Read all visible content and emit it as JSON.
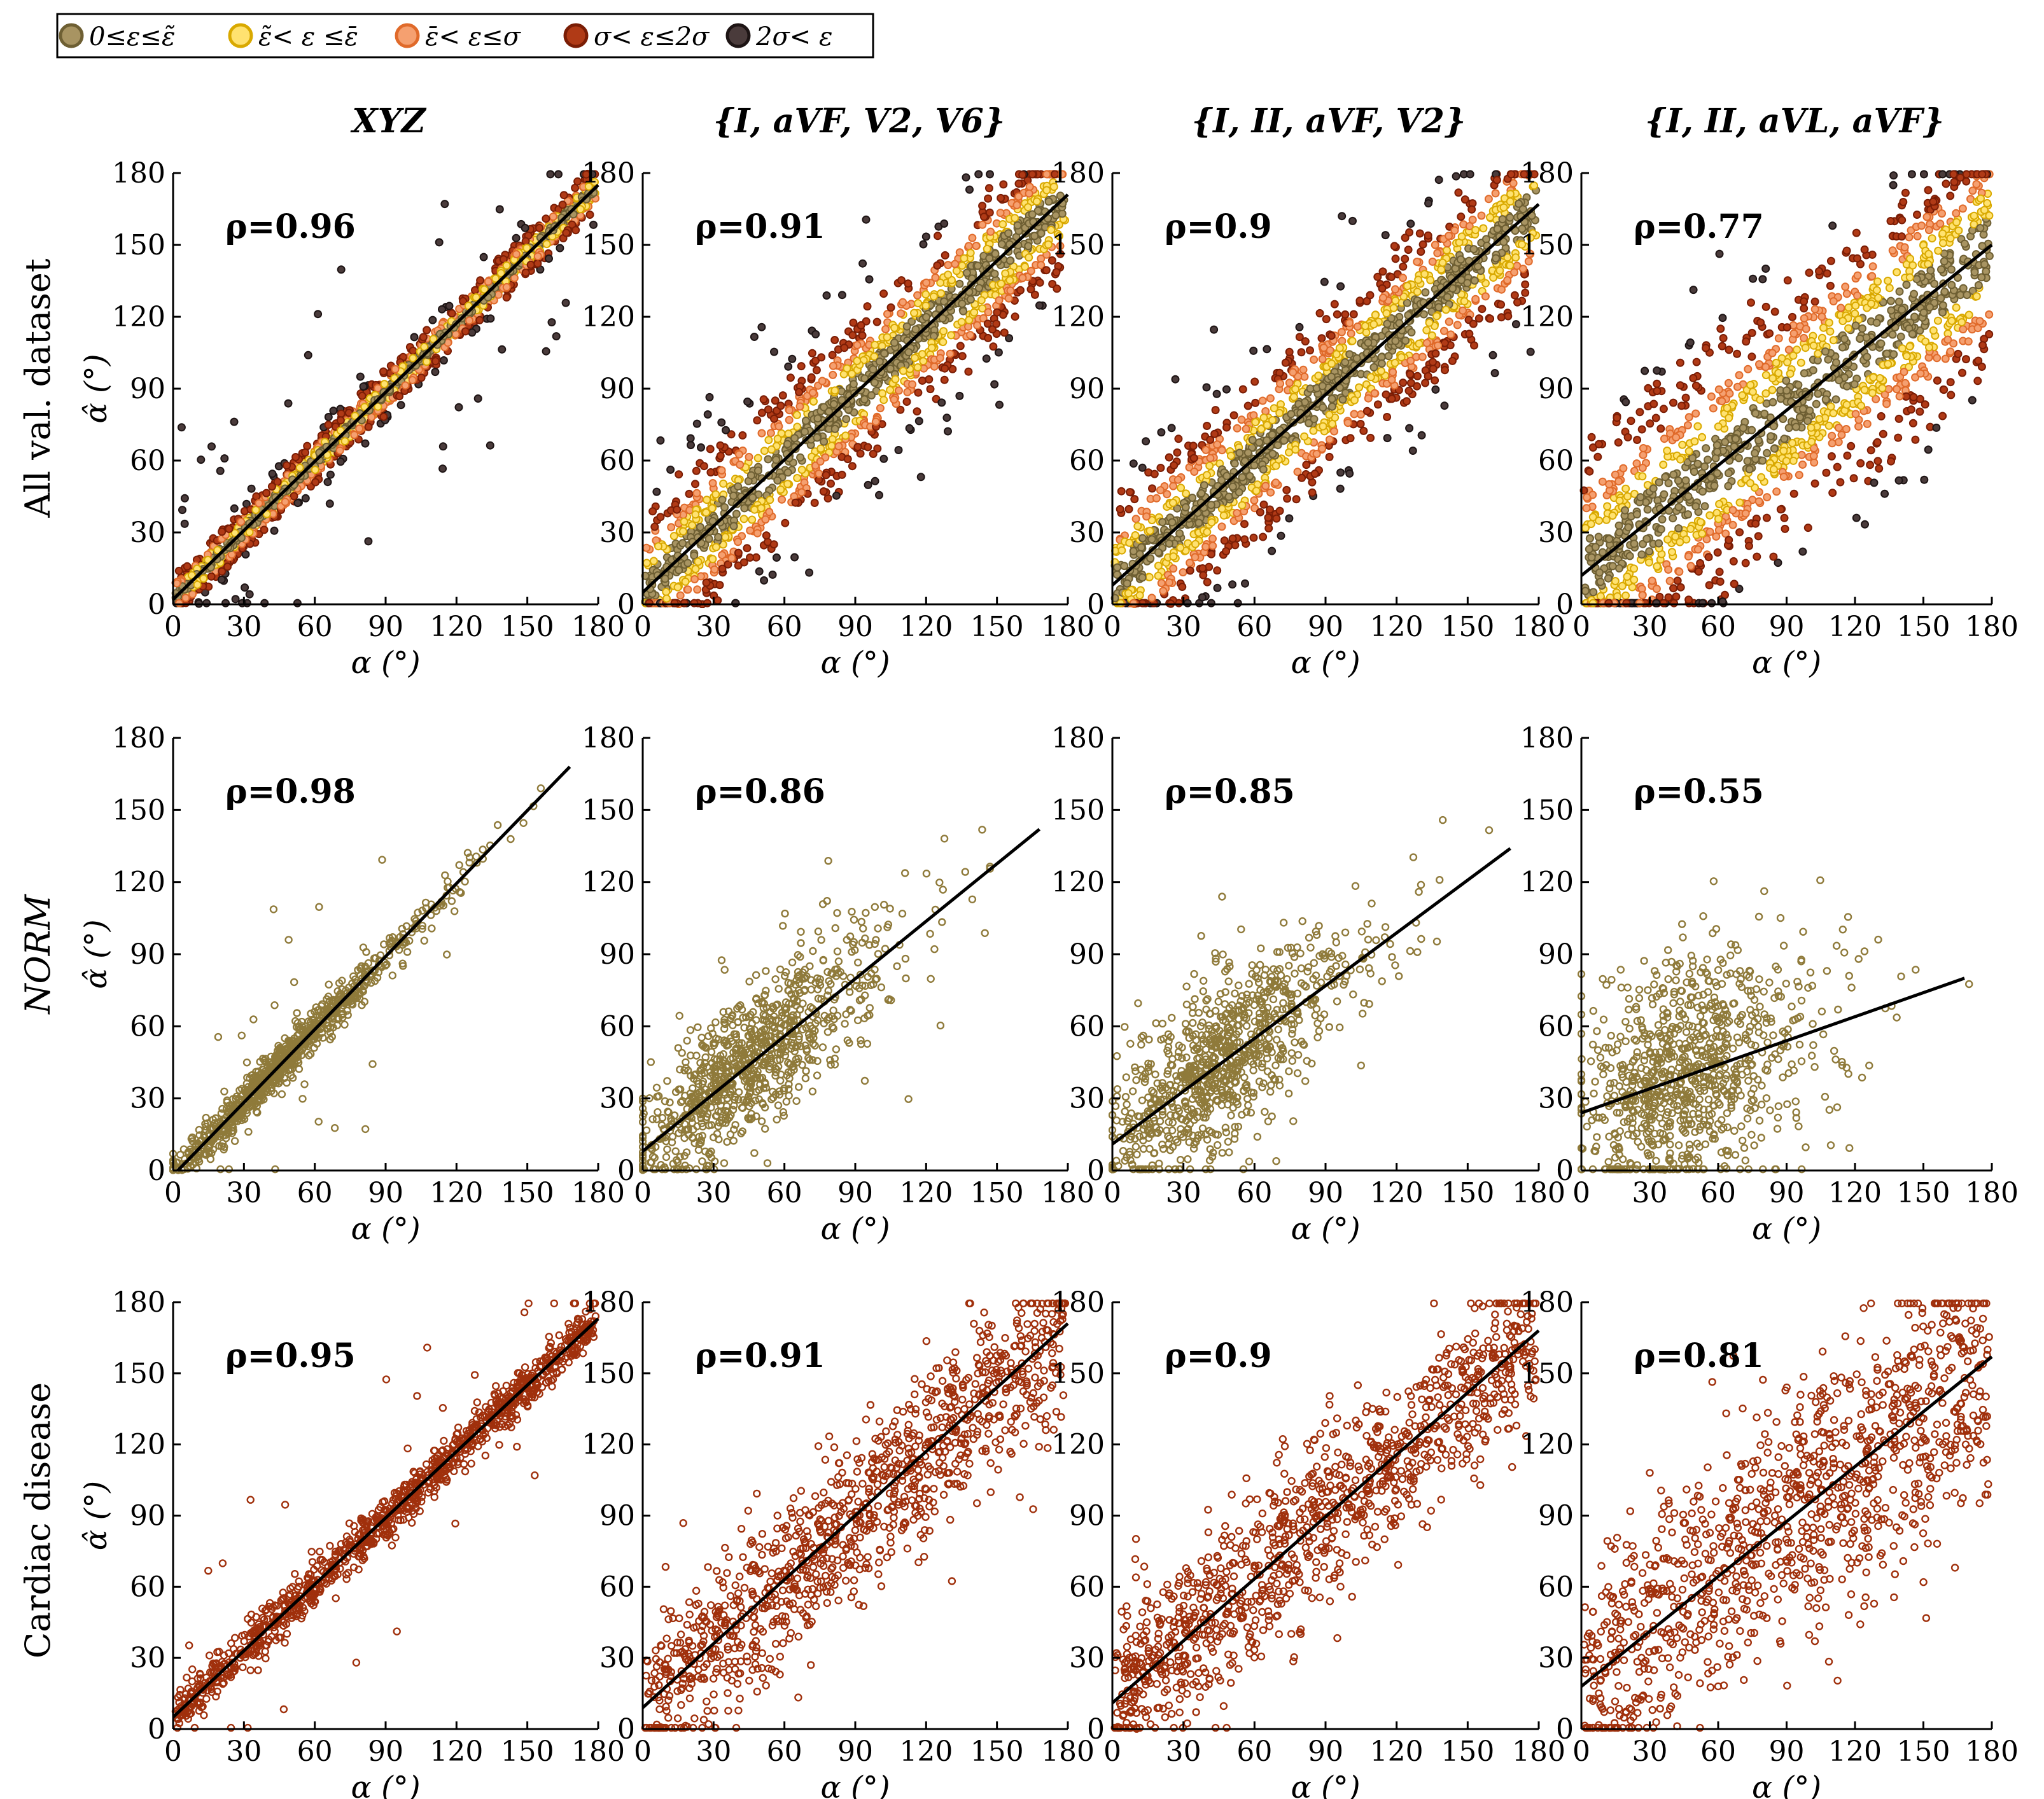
{
  "figure": {
    "legend": {
      "entries": [
        {
          "label": "0≤ε≤ε̃",
          "fill": "#a89462",
          "stroke": "#6e5f33"
        },
        {
          "label": "ε̃< ε ≤ε̄",
          "fill": "#ffe270",
          "stroke": "#d9a900"
        },
        {
          "label": "ε̄< ε≤σ",
          "fill": "#f5a070",
          "stroke": "#e06a2a"
        },
        {
          "label": "σ< ε≤2σ",
          "fill": "#b03a16",
          "stroke": "#7a1d05"
        },
        {
          "label": "2σ< ε",
          "fill": "#4a3b3b",
          "stroke": "#1d1414"
        }
      ],
      "placement": "top-left"
    },
    "column_titles": [
      "XYZ",
      "{I, aVF, V2, V6}",
      "{I, II, aVF, V2}",
      "{I, II, aVL, aVF}"
    ],
    "row_titles": [
      "All val. dataset",
      "NORM",
      "Cardiac disease"
    ],
    "x_label": "α (°)",
    "y_label": "α̂ (°)",
    "ticks": [
      "0",
      "30",
      "60",
      "90",
      "120",
      "150",
      "180"
    ]
  },
  "chart_data": [
    {
      "type": "scatter",
      "row": "All val. dataset",
      "column": "XYZ",
      "rho_text": "ρ=0.96",
      "rho": 0.96,
      "fit_line": {
        "x": [
          0,
          180
        ],
        "y": [
          2,
          175
        ]
      },
      "xlim": [
        0,
        180
      ],
      "ylim": [
        0,
        180
      ],
      "series_names": [
        "0≤ε≤ε̃",
        "ε̃< ε ≤ε̄",
        "ε̄< ε≤σ",
        "σ< ε≤2σ",
        "2σ< ε"
      ]
    },
    {
      "type": "scatter",
      "row": "All val. dataset",
      "column": "{I, aVF, V2, V6}",
      "rho_text": "ρ=0.91",
      "rho": 0.91,
      "fit_line": {
        "x": [
          0,
          180
        ],
        "y": [
          5,
          171
        ]
      },
      "xlim": [
        0,
        180
      ],
      "ylim": [
        0,
        180
      ],
      "series_names": [
        "0≤ε≤ε̃",
        "ε̃< ε ≤ε̄",
        "ε̄< ε≤σ",
        "σ< ε≤2σ",
        "2σ< ε"
      ]
    },
    {
      "type": "scatter",
      "row": "All val. dataset",
      "column": "{I, II, aVF, V2}",
      "rho_text": "ρ=0.9",
      "rho": 0.9,
      "fit_line": {
        "x": [
          0,
          180
        ],
        "y": [
          8,
          167
        ]
      },
      "xlim": [
        0,
        180
      ],
      "ylim": [
        0,
        180
      ],
      "series_names": [
        "0≤ε≤ε̃",
        "ε̃< ε ≤ε̄",
        "ε̄< ε≤σ",
        "σ< ε≤2σ",
        "2σ< ε"
      ]
    },
    {
      "type": "scatter",
      "row": "All val. dataset",
      "column": "{I, II, aVL, aVF}",
      "rho_text": "ρ=0.77",
      "rho": 0.77,
      "fit_line": {
        "x": [
          0,
          180
        ],
        "y": [
          12,
          150
        ]
      },
      "xlim": [
        0,
        180
      ],
      "ylim": [
        0,
        180
      ],
      "series_names": [
        "0≤ε≤ε̃",
        "ε̃< ε ≤ε̄",
        "ε̄< ε≤σ",
        "σ< ε≤2σ",
        "2σ< ε"
      ]
    },
    {
      "type": "scatter",
      "row": "NORM",
      "column": "XYZ",
      "rho_text": "ρ=0.98",
      "rho": 0.98,
      "fit_line": {
        "x": [
          2,
          168
        ],
        "y": [
          0,
          168
        ]
      },
      "xlim": [
        0,
        180
      ],
      "ylim": [
        0,
        180
      ]
    },
    {
      "type": "scatter",
      "row": "NORM",
      "column": "{I, aVF, V2, V6}",
      "rho_text": "ρ=0.86",
      "rho": 0.86,
      "fit_line": {
        "x": [
          0,
          168
        ],
        "y": [
          8,
          142
        ]
      },
      "xlim": [
        0,
        180
      ],
      "ylim": [
        0,
        180
      ]
    },
    {
      "type": "scatter",
      "row": "NORM",
      "column": "{I, II, aVF, V2}",
      "rho_text": "ρ=0.85",
      "rho": 0.85,
      "fit_line": {
        "x": [
          0,
          168
        ],
        "y": [
          11,
          134
        ]
      },
      "xlim": [
        0,
        180
      ],
      "ylim": [
        0,
        180
      ]
    },
    {
      "type": "scatter",
      "row": "NORM",
      "column": "{I, II, aVL, aVF}",
      "rho_text": "ρ=0.55",
      "rho": 0.55,
      "fit_line": {
        "x": [
          0,
          168
        ],
        "y": [
          24,
          80
        ]
      },
      "xlim": [
        0,
        180
      ],
      "ylim": [
        0,
        180
      ]
    },
    {
      "type": "scatter",
      "row": "Cardiac disease",
      "column": "XYZ",
      "rho_text": "ρ=0.95",
      "rho": 0.95,
      "fit_line": {
        "x": [
          0,
          180
        ],
        "y": [
          5,
          173
        ]
      },
      "xlim": [
        0,
        180
      ],
      "ylim": [
        0,
        180
      ]
    },
    {
      "type": "scatter",
      "row": "Cardiac disease",
      "column": "{I, aVF, V2, V6}",
      "rho_text": "ρ=0.91",
      "rho": 0.91,
      "fit_line": {
        "x": [
          0,
          180
        ],
        "y": [
          9,
          171
        ]
      },
      "xlim": [
        0,
        180
      ],
      "ylim": [
        0,
        180
      ]
    },
    {
      "type": "scatter",
      "row": "Cardiac disease",
      "column": "{I, II, aVF, V2}",
      "rho_text": "ρ=0.9",
      "rho": 0.9,
      "fit_line": {
        "x": [
          0,
          180
        ],
        "y": [
          11,
          168
        ]
      },
      "xlim": [
        0,
        180
      ],
      "ylim": [
        0,
        180
      ]
    },
    {
      "type": "scatter",
      "row": "Cardiac disease",
      "column": "{I, II, aVL, aVF}",
      "rho_text": "ρ=0.81",
      "rho": 0.81,
      "fit_line": {
        "x": [
          0,
          180
        ],
        "y": [
          18,
          157
        ]
      },
      "xlim": [
        0,
        180
      ],
      "ylim": [
        0,
        180
      ]
    }
  ]
}
